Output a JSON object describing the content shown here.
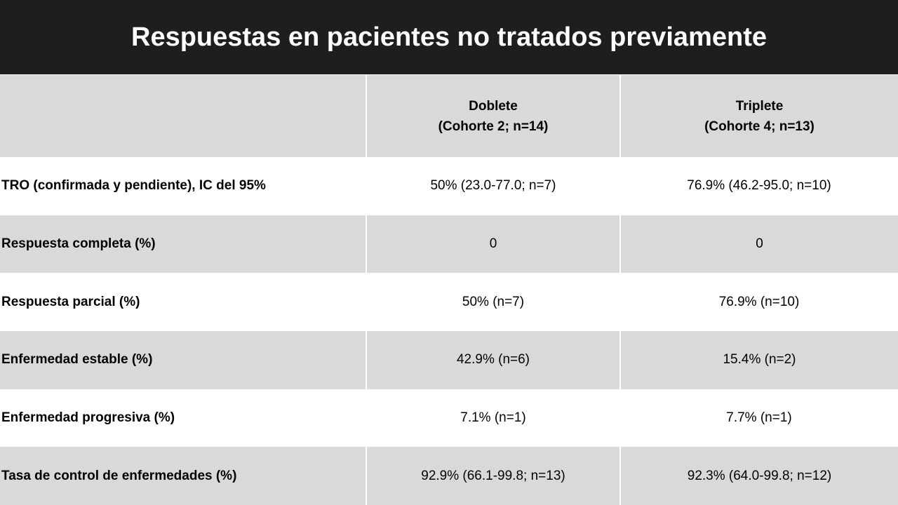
{
  "slide": {
    "title": "Respuestas en pacientes no tratados previamente"
  },
  "table": {
    "columns": [
      {
        "line1": "",
        "line2": ""
      },
      {
        "line1": "Doblete",
        "line2": "(Cohorte 2; n=14)"
      },
      {
        "line1": "Triplete",
        "line2": "(Cohorte 4; n=13)"
      }
    ],
    "rows": [
      {
        "label": "TRO (confirmada y pendiente), IC del 95%",
        "doblete": "50% (23.0-77.0;  n=7)",
        "triplete": "76.9% (46.2-95.0;  n=10)"
      },
      {
        "label": "Respuesta completa (%)",
        "doblete": "0",
        "triplete": "0"
      },
      {
        "label": "Respuesta parcial (%)",
        "doblete": "50% (n=7)",
        "triplete": "76.9% (n=10)"
      },
      {
        "label": "Enfermedad estable (%)",
        "doblete": "42.9% (n=6)",
        "triplete": "15.4% (n=2)"
      },
      {
        "label": "Enfermedad progresiva (%)",
        "doblete": "7.1% (n=1)",
        "triplete": "7.7% (n=1)"
      },
      {
        "label": "Tasa de control de enfermedades (%)",
        "doblete": "92.9% (66.1-99.8;  n=13)",
        "triplete": "92.3% (64.0-99.8;  n=12)"
      }
    ]
  },
  "colors": {
    "title_bar": "#1f1d1d",
    "title_text": "#ffffff",
    "shaded_row": "#d9d9d9",
    "plain_row": "#ffffff"
  }
}
